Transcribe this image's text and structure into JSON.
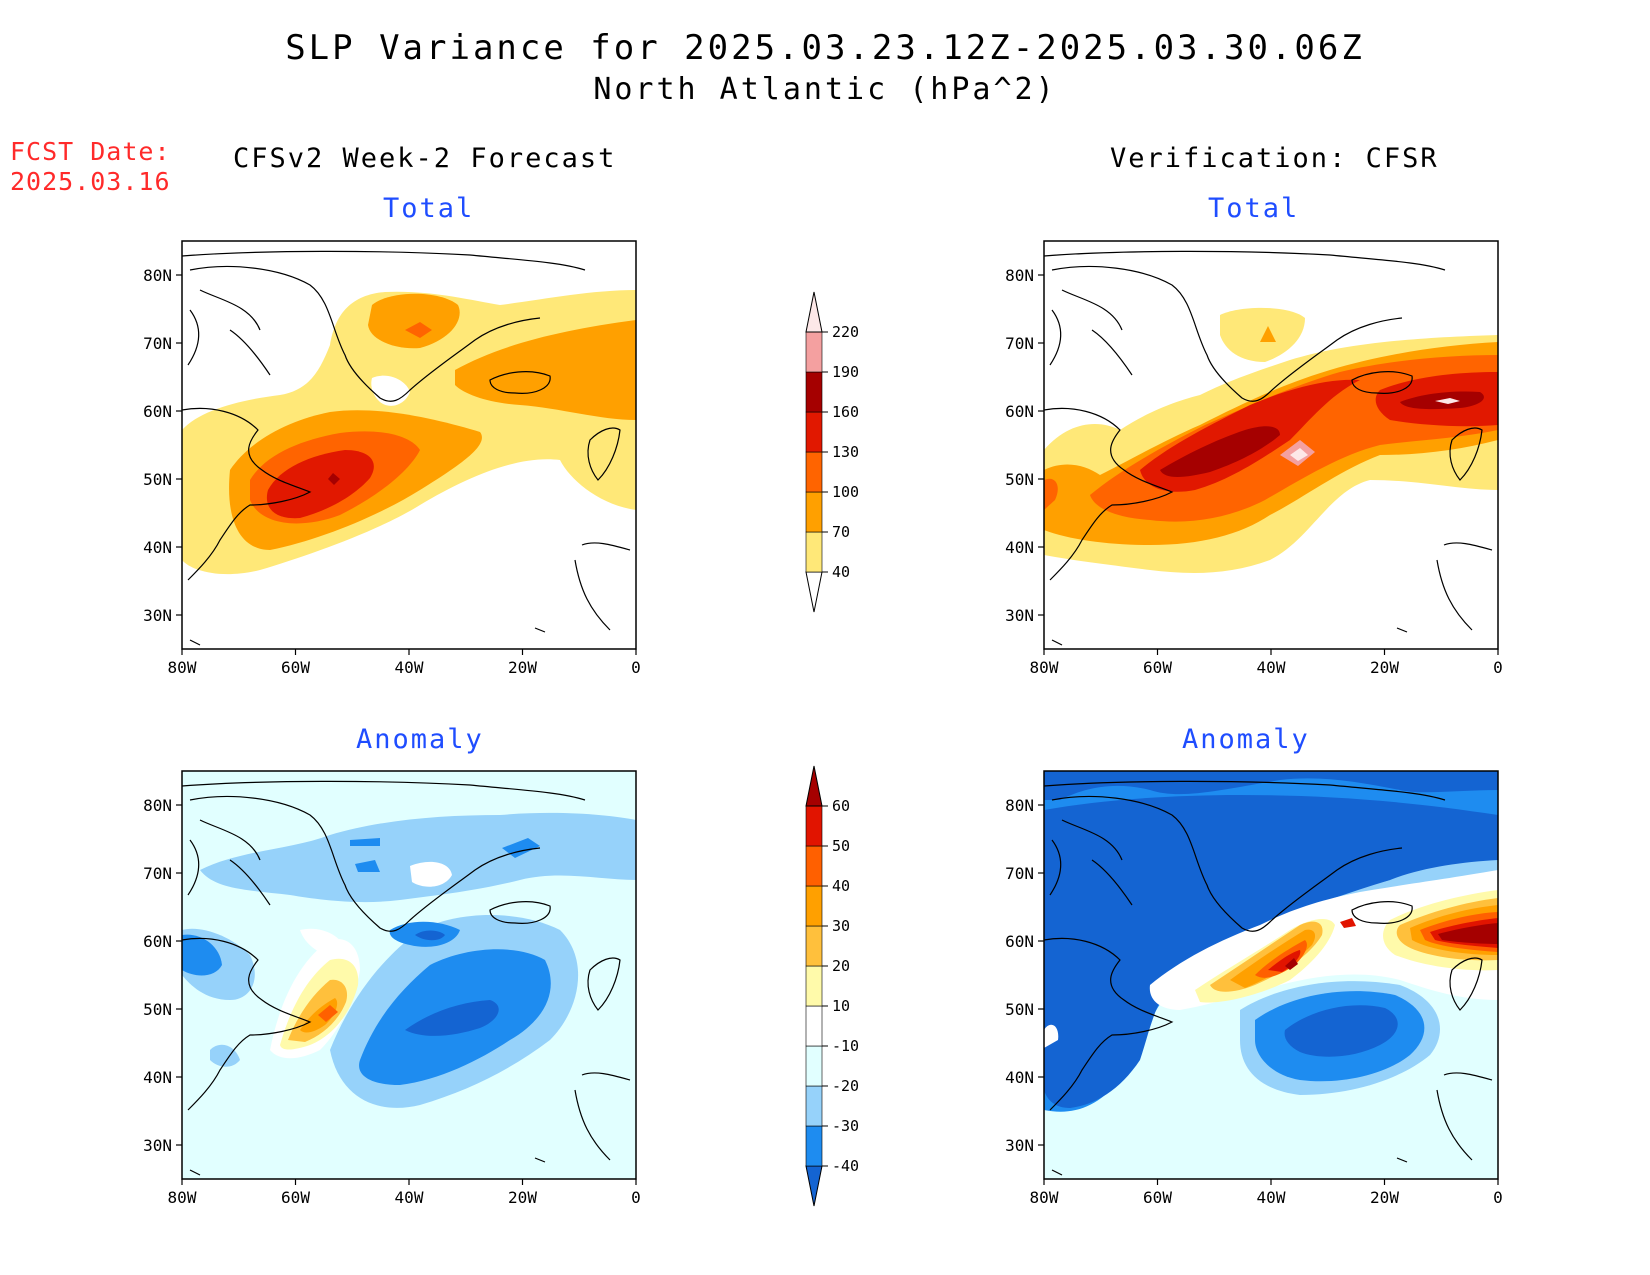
{
  "header": {
    "title": "SLP Variance for 2025.03.23.12Z-2025.03.30.06Z",
    "subtitle": "North Atlantic (hPa^2)",
    "fcst_label": "FCST Date:",
    "fcst_date": "2025.03.16"
  },
  "columns": {
    "left_title": "CFSv2 Week-2 Forecast",
    "right_title": "Verification: CFSR"
  },
  "panels": {
    "forecast_total": {
      "label": "Total"
    },
    "verify_total": {
      "label": "Total"
    },
    "forecast_anomaly": {
      "label": "Anomaly"
    },
    "verify_anomaly": {
      "label": "Anomaly"
    }
  },
  "axes": {
    "lat_ticks": [
      "80N",
      "70N",
      "60N",
      "50N",
      "40N",
      "30N"
    ],
    "lon_ticks": [
      "80W",
      "60W",
      "40W",
      "20W",
      "0"
    ],
    "lat_range": [
      25,
      85
    ],
    "lon_range": [
      -80,
      0
    ]
  },
  "colorbars": {
    "total": {
      "levels": [
        "40",
        "70",
        "100",
        "130",
        "160",
        "190",
        "220"
      ],
      "colors": [
        "#ffe878",
        "#ffa000",
        "#ff6400",
        "#e11800",
        "#a50000",
        "#f4a0a0",
        "#fde8e8"
      ]
    },
    "anomaly": {
      "levels": [
        "-40",
        "-30",
        "-20",
        "-10",
        "10",
        "20",
        "30",
        "40",
        "50",
        "60"
      ],
      "colors": [
        "#1464d2",
        "#1e8cf0",
        "#96d2fa",
        "#e1ffff",
        "#ffffff",
        "#fffaaa",
        "#ffc03c",
        "#ffa000",
        "#ff6000",
        "#e11400",
        "#a50000"
      ]
    }
  },
  "colors": {
    "title_text": "#000000",
    "fcst_text": "#ff2a2a",
    "panel_label": "#1f4dff"
  }
}
